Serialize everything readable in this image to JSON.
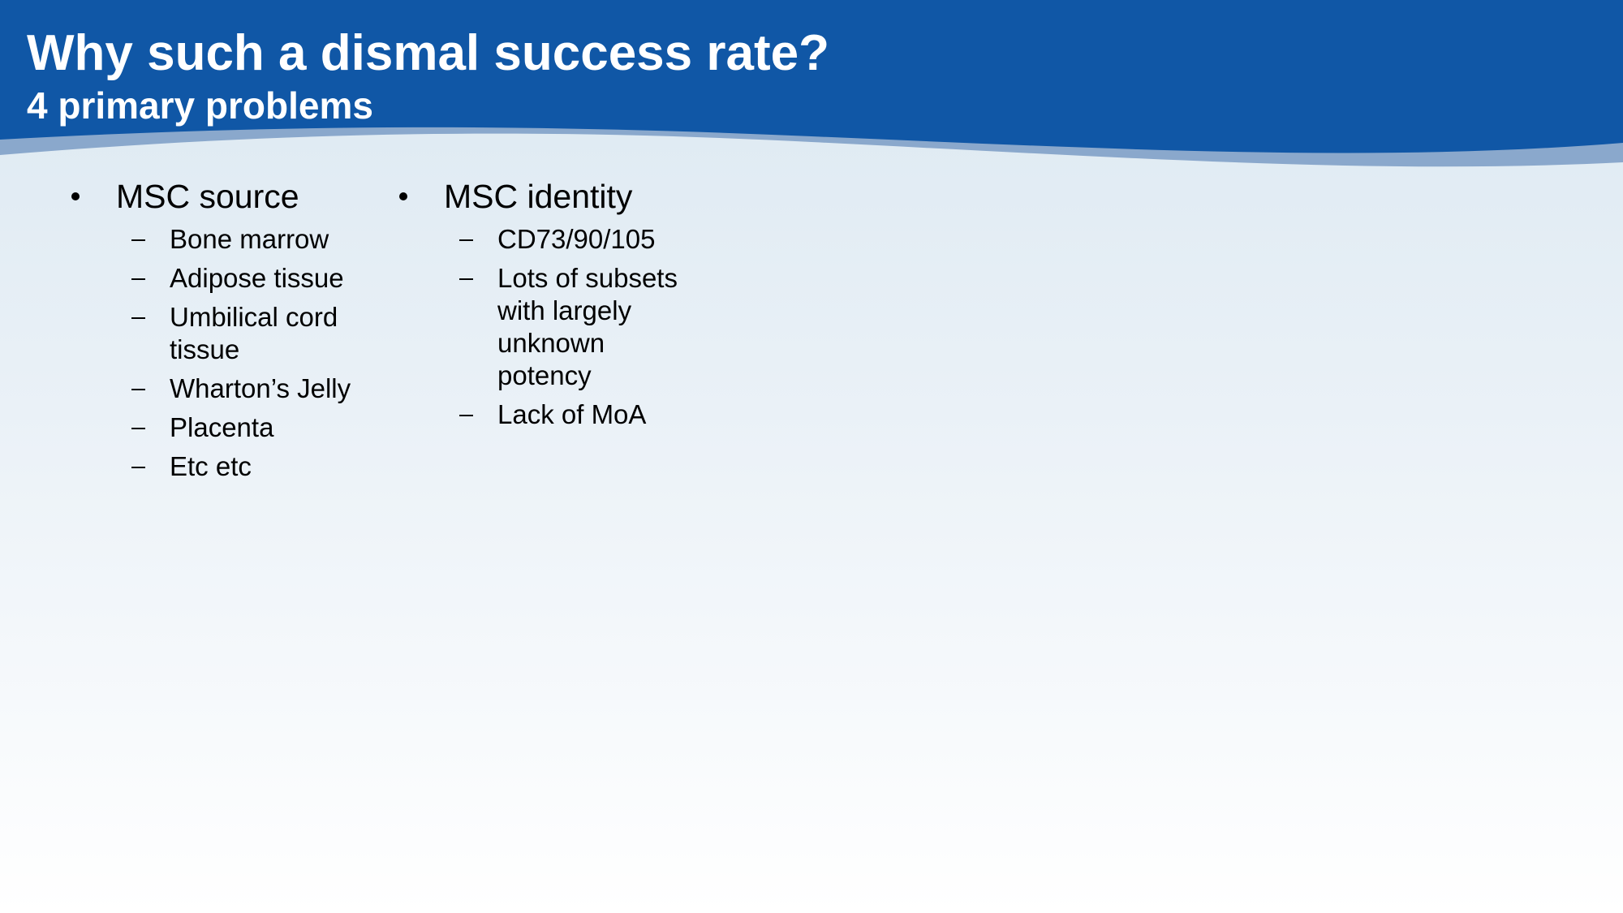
{
  "header": {
    "title": "Why such a dismal success rate?",
    "subtitle": "4 primary problems"
  },
  "columns": [
    {
      "heading": "MSC source",
      "items": [
        "Bone marrow",
        "Adipose tissue",
        "Umbilical cord tissue",
        "Wharton’s Jelly",
        "Placenta",
        "Etc etc"
      ]
    },
    {
      "heading": "MSC identity",
      "items": [
        "CD73/90/105",
        "Lots of subsets with largely unknown potency",
        "Lack of MoA"
      ]
    }
  ]
}
